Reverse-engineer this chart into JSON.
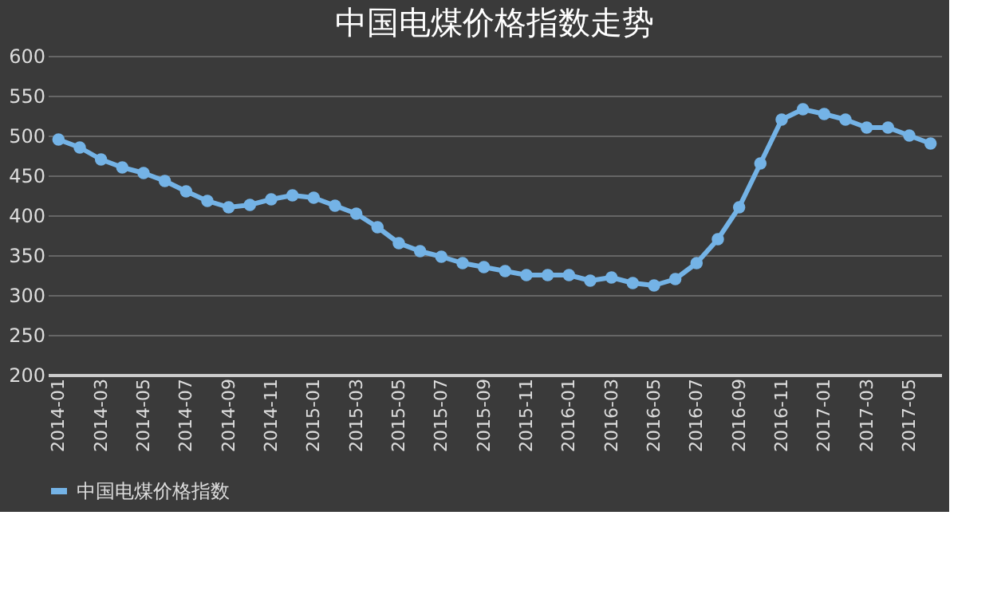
{
  "chart_data": {
    "type": "line",
    "title": "中国电煤价格指数走势",
    "categories": [
      "2014-01",
      null,
      "2014-03",
      null,
      "2014-05",
      null,
      "2014-07",
      null,
      "2014-09",
      null,
      "2014-11",
      null,
      "2015-01",
      null,
      "2015-03",
      null,
      "2015-05",
      null,
      "2015-07",
      null,
      "2015-09",
      null,
      "2015-11",
      null,
      "2016-01",
      null,
      "2016-03",
      null,
      "2016-05",
      null,
      "2016-07",
      null,
      "2016-09",
      null,
      "2016-11",
      null,
      "2017-01",
      null,
      "2017-03",
      null,
      "2017-05",
      null
    ],
    "series": [
      {
        "name": "中国电煤价格指数",
        "color": "#74b3e6",
        "values": [
          495,
          485,
          470,
          460,
          453,
          443,
          430,
          418,
          410,
          413,
          420,
          425,
          422,
          412,
          402,
          385,
          365,
          355,
          348,
          340,
          335,
          330,
          325,
          325,
          325,
          318,
          322,
          315,
          312,
          320,
          340,
          370,
          410,
          465,
          520,
          533,
          527,
          520,
          510,
          510,
          500,
          490
        ]
      }
    ],
    "ylim": [
      200,
      600
    ],
    "yticks": [
      200,
      250,
      300,
      350,
      400,
      450,
      500,
      550,
      600
    ],
    "grid": "y",
    "legend": "bottom",
    "marker": "circle",
    "line_style": "solid"
  }
}
